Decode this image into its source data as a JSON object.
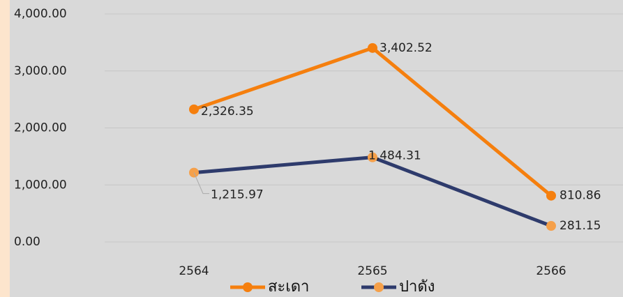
{
  "chart_data": {
    "type": "line",
    "categories": [
      "2564",
      "2565",
      "2566"
    ],
    "series": [
      {
        "name": "สะเดา",
        "color": "#f57f0e",
        "marker_color": "#f57f0e",
        "values": [
          2326.35,
          3402.52,
          810.86
        ],
        "value_labels": [
          "2,326.35",
          "3,402.52",
          "810.86"
        ]
      },
      {
        "name": "ปาดัง",
        "color": "#2e3b6c",
        "marker_color": "#f5a04a",
        "values": [
          1215.97,
          1484.31,
          281.15
        ],
        "value_labels": [
          "1,215.97",
          "1,484.31",
          "281.15"
        ]
      }
    ],
    "ylim": [
      0,
      4000
    ],
    "yticks": [
      {
        "value": 0,
        "label": "0.00"
      },
      {
        "value": 1000,
        "label": "1,000.00"
      },
      {
        "value": 2000,
        "label": "2,000.00"
      },
      {
        "value": 3000,
        "label": "3,000.00"
      },
      {
        "value": 4000,
        "label": "4,000.00"
      }
    ],
    "grid": true,
    "legend": "bottom"
  }
}
